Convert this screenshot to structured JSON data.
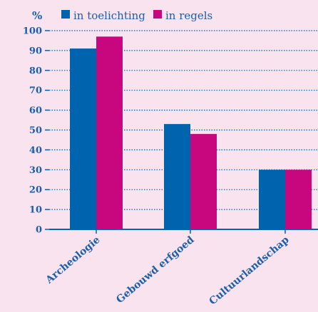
{
  "chart_data": {
    "type": "bar",
    "categories": [
      "Archeologie",
      "Gebouwd erfgoed",
      "Cultuurlandschap"
    ],
    "series": [
      {
        "name": "in toelichting",
        "values": [
          91,
          53,
          30
        ],
        "color": "#0063ad"
      },
      {
        "name": "in regels",
        "values": [
          97,
          48,
          30
        ],
        "color": "#c8077e"
      }
    ],
    "ylabel": "%",
    "ylim": [
      0,
      100
    ],
    "yticks": [
      "0",
      "10",
      "20",
      "30",
      "40",
      "50",
      "60",
      "70",
      "80",
      "90",
      "100"
    ],
    "grid": true,
    "gridline_color": "#0063ad",
    "axis_color": "#0063ad",
    "text_color": "#1b5fa8",
    "legend_position": "top"
  }
}
